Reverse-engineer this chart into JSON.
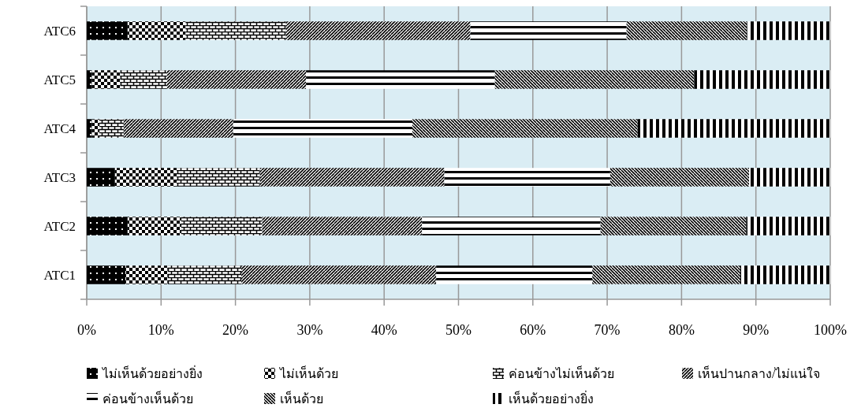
{
  "chart_data": {
    "type": "bar",
    "orientation": "horizontal",
    "stacked": true,
    "grid": "x",
    "legend": "bottom",
    "categories": [
      "ATC6",
      "ATC5",
      "ATC4",
      "ATC3",
      "ATC2",
      "ATC1"
    ],
    "xlim": [
      0,
      100
    ],
    "xticks": [
      {
        "value": 0,
        "label": "0%"
      },
      {
        "value": 10,
        "label": "10%"
      },
      {
        "value": 20,
        "label": "20%"
      },
      {
        "value": 30,
        "label": "30%"
      },
      {
        "value": 40,
        "label": "40%"
      },
      {
        "value": 50,
        "label": "50%"
      },
      {
        "value": 60,
        "label": "60%"
      },
      {
        "value": 70,
        "label": "70%"
      },
      {
        "value": 80,
        "label": "80%"
      },
      {
        "value": 90,
        "label": "90%"
      },
      {
        "value": 100,
        "label": "100%"
      }
    ],
    "series": [
      {
        "name": "ไม่เห็นด้วยอย่างยิ่ง",
        "color": "#000000",
        "values": [
          5.5,
          0.7,
          0.7,
          3.8,
          5.5,
          5.2
        ]
      },
      {
        "name": "ไม่เห็นด้วย",
        "color": "#000000",
        "values": [
          7.8,
          3.8,
          1.0,
          8.3,
          7.2,
          5.7
        ]
      },
      {
        "name": "ค่อนข้างไม่เห็นด้วย",
        "color": "#000000",
        "values": [
          13.5,
          6.3,
          3.3,
          11.2,
          10.9,
          9.9
        ]
      },
      {
        "name": "เห็นปานกลาง/ไม่แน่ใจ",
        "color": "#000000",
        "values": [
          24.8,
          18.7,
          14.7,
          24.8,
          21.5,
          26.2
        ]
      },
      {
        "name": "ค่อนข้างเห็นด้วย",
        "color": "#000000",
        "values": [
          21.0,
          25.4,
          24.1,
          22.3,
          24.0,
          21.0
        ]
      },
      {
        "name": "เห็นด้วย",
        "color": "#000000",
        "values": [
          16.2,
          26.8,
          30.3,
          18.7,
          19.6,
          19.9
        ]
      },
      {
        "name": "เห็นด้วยอย่างยิ่ง",
        "color": "#000000",
        "values": [
          11.2,
          18.3,
          25.9,
          10.9,
          11.3,
          12.1
        ]
      }
    ]
  }
}
